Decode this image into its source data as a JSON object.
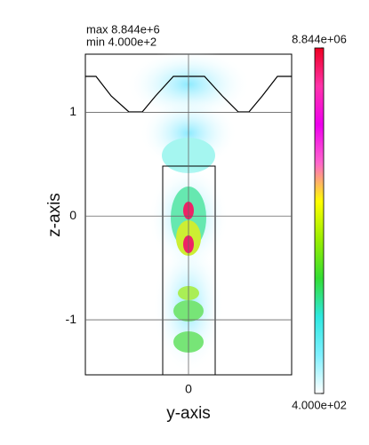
{
  "chart_data": {
    "type": "field",
    "annotations": [
      "max  8.844e+6",
      "min  4.000e+2"
    ],
    "xlabel": "y-axis",
    "ylabel": "z-axis",
    "xlim": [
      -1,
      1
    ],
    "xticks": [
      0
    ],
    "ylim": [
      -1.53,
      1.56
    ],
    "yticks": [
      -1,
      0,
      1
    ],
    "grid": true,
    "colorscale": [
      "#ffffff",
      "#7ff0ff",
      "#2ee8e0",
      "#33dd33",
      "#99ee00",
      "#ffff00",
      "#ff66cc",
      "#ee00ee",
      "#ff33aa",
      "#ee0022"
    ],
    "clim": [
      400,
      8844000
    ],
    "cticks": [
      {
        "value": 8844000,
        "label": "8.844e+06"
      },
      {
        "value": 400,
        "label": "4.000e+02"
      }
    ]
  }
}
